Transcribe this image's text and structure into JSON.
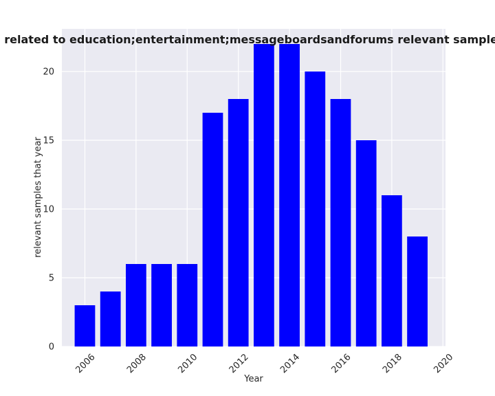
{
  "chart_data": {
    "type": "bar",
    "title": "Number of instances related to education;entertainment;messageboardsandforums relevant samples that year in preprint",
    "xlabel": "Year",
    "ylabel": "relevant samples that year",
    "x": [
      2006,
      2007,
      2008,
      2009,
      2010,
      2011,
      2012,
      2013,
      2014,
      2015,
      2016,
      2017,
      2018,
      2019
    ],
    "values": [
      3,
      4,
      6,
      6,
      6,
      17,
      18,
      22,
      22,
      20,
      18,
      15,
      11,
      8
    ],
    "xticks": [
      "2006",
      "2008",
      "2010",
      "2012",
      "2014",
      "2016",
      "2018",
      "2020"
    ],
    "yticks": [
      "0",
      "5",
      "10",
      "15",
      "20"
    ],
    "xlim": [
      2005.1,
      2020.1
    ],
    "ylim": [
      0,
      23.1
    ],
    "grid": true,
    "bar_color": "#0000ff",
    "plot_background": "#eaeaf2",
    "grid_color": "#ffffff"
  }
}
